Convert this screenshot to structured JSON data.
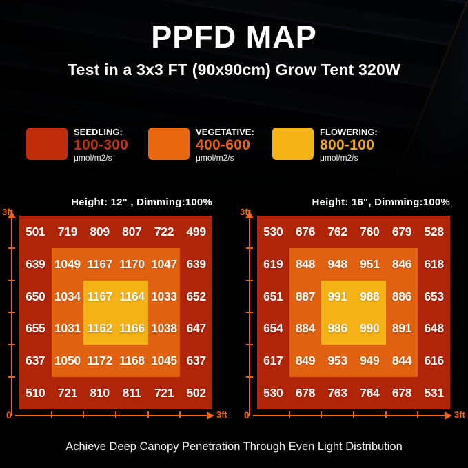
{
  "header": {
    "title": "PPFD MAP",
    "subtitle": "Test in a 3x3 FT (90x90cm) Grow Tent 320W"
  },
  "legend": {
    "items": [
      {
        "label": "SEEDLING:",
        "range": "100-300",
        "unit": "μmol/m2/s",
        "color": "#c02d0b",
        "range_color": "#bd3410"
      },
      {
        "label": "VEGETATIVE:",
        "range": "400-600",
        "unit": "μmol/m2/s",
        "color": "#e9670e",
        "range_color": "#e7650f"
      },
      {
        "label": "FLOWERING:",
        "range": "800-100",
        "unit": "μmol/m2/s",
        "color": "#f6b318",
        "range_color": "#f3ab15"
      }
    ]
  },
  "chart_data": [
    {
      "type": "heatmap",
      "title": "Height: 12\" , Dimming:100%",
      "rows": 6,
      "cols": 6,
      "values": [
        [
          501,
          719,
          809,
          807,
          722,
          499
        ],
        [
          639,
          1049,
          1167,
          1170,
          1047,
          639
        ],
        [
          650,
          1034,
          1167,
          1164,
          1033,
          652
        ],
        [
          655,
          1031,
          1162,
          1166,
          1038,
          647
        ],
        [
          637,
          1050,
          1172,
          1168,
          1045,
          637
        ],
        [
          510,
          721,
          810,
          811,
          721,
          502
        ]
      ],
      "zone_colors": {
        "outer": "#b02407",
        "middle": "#e06210",
        "center": "#f5b216"
      },
      "x_axis": {
        "origin_label": "0",
        "end_label": "3ft"
      },
      "y_axis": {
        "end_label": "3ft"
      },
      "unit": "μmol/m2/s"
    },
    {
      "type": "heatmap",
      "title": "Height: 16\", Dimming:100%",
      "rows": 6,
      "cols": 6,
      "values": [
        [
          530,
          676,
          762,
          760,
          679,
          528
        ],
        [
          619,
          848,
          948,
          951,
          846,
          618
        ],
        [
          651,
          887,
          991,
          988,
          886,
          653
        ],
        [
          654,
          884,
          986,
          990,
          891,
          648
        ],
        [
          617,
          849,
          953,
          949,
          844,
          616
        ],
        [
          530,
          678,
          763,
          764,
          678,
          531
        ]
      ],
      "zone_colors": {
        "outer": "#b02407",
        "middle": "#e06210",
        "center": "#f5b216"
      },
      "x_axis": {
        "origin_label": "0",
        "end_label": "3ft"
      },
      "y_axis": {
        "end_label": "3ft"
      },
      "unit": "μmol/m2/s"
    }
  ],
  "footer": {
    "caption": "Achieve Deep Canopy Penetration Through Even Light Distribution"
  },
  "colors": {
    "axis": "#ee6511",
    "background": "#000000"
  }
}
